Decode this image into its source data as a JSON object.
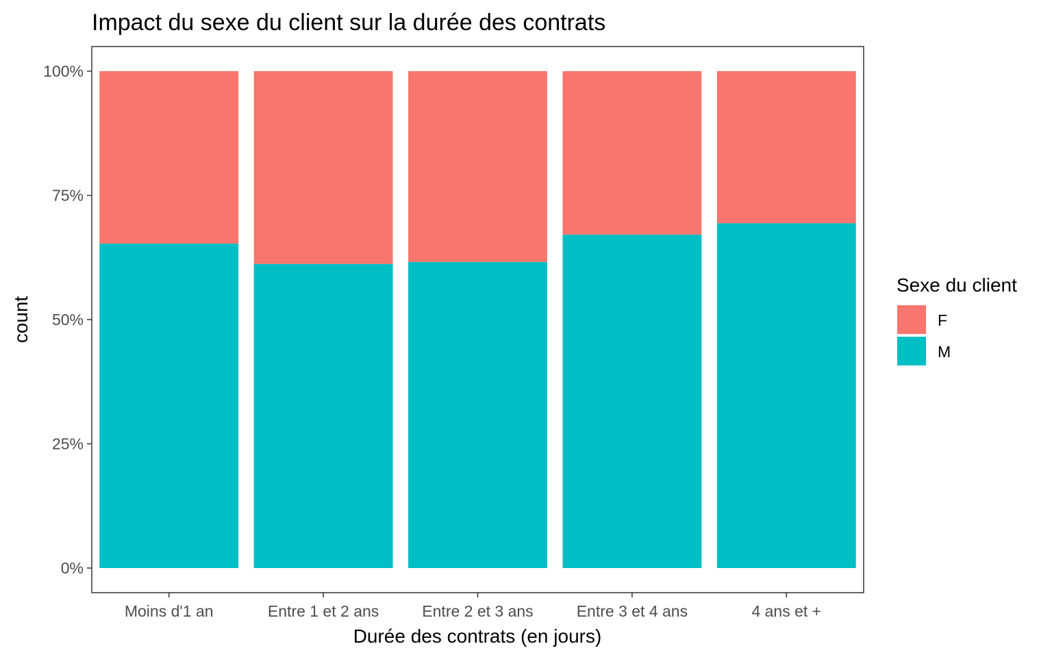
{
  "chart_data": {
    "type": "bar",
    "stacked": true,
    "position": "fill",
    "title": "Impact du sexe du client sur la durée des contrats",
    "xlabel": "Durée des contrats (en jours)",
    "ylabel": "count",
    "categories": [
      "Moins d'1 an",
      "Entre 1 et 2 ans",
      "Entre 2 et 3 ans",
      "Entre 3 et 4 ans",
      "4 ans et +"
    ],
    "series": [
      {
        "name": "M",
        "values": [
          0.653,
          0.612,
          0.616,
          0.671,
          0.694
        ],
        "color": "#00BFC4"
      },
      {
        "name": "F",
        "values": [
          0.347,
          0.388,
          0.384,
          0.329,
          0.306
        ],
        "color": "#F8766D"
      }
    ],
    "ylim": [
      0,
      1
    ],
    "yticks": [
      0,
      0.25,
      0.5,
      0.75,
      1
    ],
    "ytick_labels": [
      "0%",
      "25%",
      "50%",
      "75%",
      "100%"
    ],
    "grid": false,
    "legend": {
      "title": "Sexe du client",
      "position": "right",
      "entries": [
        {
          "label": "F",
          "color": "#F8766D"
        },
        {
          "label": "M",
          "color": "#00BFC4"
        }
      ]
    }
  }
}
